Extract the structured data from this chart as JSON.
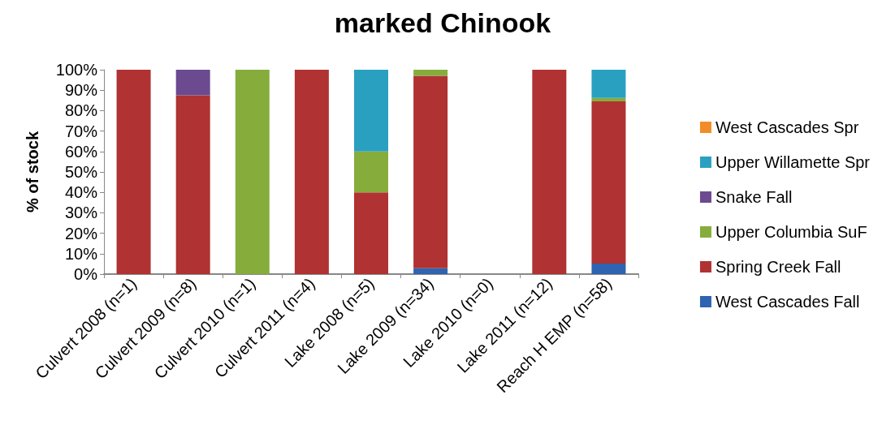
{
  "chart_data": {
    "type": "bar",
    "title": "marked Chinook",
    "ylabel": "% of stock",
    "stacked": true,
    "categories": [
      "Culvert 2008 (n=1)",
      "Culvert 2009 (n=8)",
      "Culvert 2010 (n=1)",
      "Culvert 2011 (n=4)",
      "Lake 2008 (n=5)",
      "Lake 2009 (n=34)",
      "Lake 2010 (n=0)",
      "Lake 2011 (n=12)",
      "Reach H EMP (n=58)"
    ],
    "series": [
      {
        "name": "West Cascades Fall",
        "color": "#2e64b0",
        "values": [
          0,
          0,
          0,
          0,
          0,
          2.9,
          0,
          0,
          5.2
        ]
      },
      {
        "name": "Spring Creek Fall",
        "color": "#b03232",
        "values": [
          100,
          87.5,
          0,
          100,
          40,
          94.1,
          0,
          100,
          79.3
        ]
      },
      {
        "name": "Upper Columbia SuF",
        "color": "#86ad3c",
        "values": [
          0,
          0,
          100,
          0,
          20,
          3,
          0,
          0,
          1.7
        ]
      },
      {
        "name": "Snake Fall",
        "color": "#6b4a8f",
        "values": [
          0,
          12.5,
          0,
          0,
          0,
          0,
          0,
          0,
          0
        ]
      },
      {
        "name": "Upper Willamette Spr",
        "color": "#2aa0c0",
        "values": [
          0,
          0,
          0,
          0,
          40,
          0,
          0,
          0,
          13.8
        ]
      },
      {
        "name": "West Cascades Spr",
        "color": "#f28c28",
        "values": [
          0,
          0,
          0,
          0,
          0,
          0,
          0,
          0,
          0
        ]
      }
    ],
    "ylim": [
      0,
      100
    ],
    "yticks": [
      {
        "value": 0,
        "label": "0%"
      },
      {
        "value": 10,
        "label": "10%"
      },
      {
        "value": 20,
        "label": "20%"
      },
      {
        "value": 30,
        "label": "30%"
      },
      {
        "value": 40,
        "label": "40%"
      },
      {
        "value": 50,
        "label": "50%"
      },
      {
        "value": 60,
        "label": "60%"
      },
      {
        "value": 70,
        "label": "70%"
      },
      {
        "value": 80,
        "label": "80%"
      },
      {
        "value": 90,
        "label": "90%"
      },
      {
        "value": 100,
        "label": "100%"
      }
    ],
    "grid": false,
    "legend": "right"
  }
}
